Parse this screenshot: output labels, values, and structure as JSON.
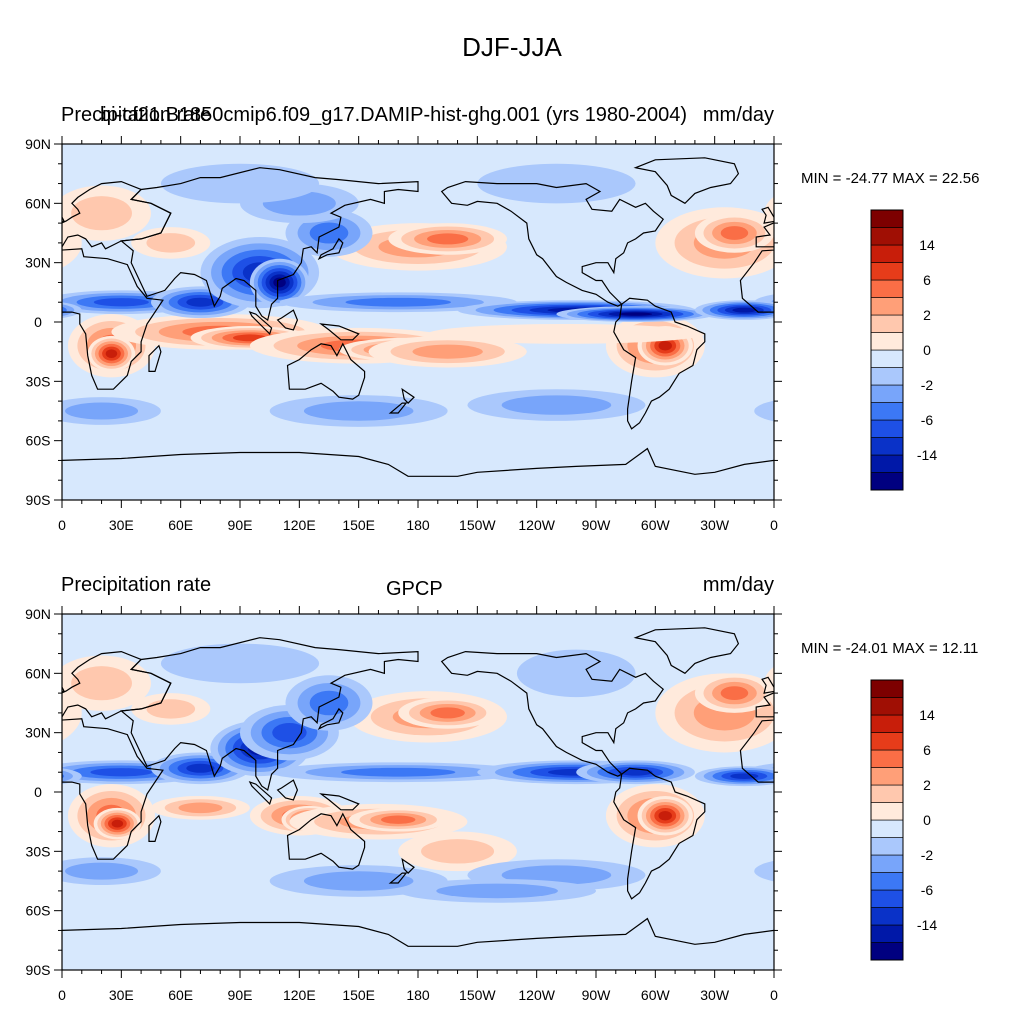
{
  "title": "DJF-JJA",
  "panels": [
    {
      "left_title": "Precipitation rate",
      "center_title": "bi-cf21.B1850cmip6.f09_g17.DAMIP-hist-ghg.001 (yrs 1980-2004)",
      "right_title": "mm/day",
      "min_max": "MIN = -24.77 MAX =  22.56"
    },
    {
      "left_title": "Precipitation rate",
      "center_title": "GPCP",
      "right_title": "mm/day",
      "min_max": "MIN = -24.01 MAX =  12.11"
    }
  ],
  "axes": {
    "x_ticks": [
      "0",
      "30E",
      "60E",
      "90E",
      "120E",
      "150E",
      "180",
      "150W",
      "120W",
      "90W",
      "60W",
      "30W",
      "0"
    ],
    "y_ticks": [
      "90N",
      "60N",
      "30N",
      "0",
      "30S",
      "60S",
      "90S"
    ]
  },
  "colorbar": {
    "colors": [
      "#000080",
      "#0018a8",
      "#0a32c8",
      "#1e50e6",
      "#3c78f5",
      "#78a5fa",
      "#aac8fc",
      "#d7e8fd",
      "#ffeadc",
      "#ffc8ae",
      "#ff9f78",
      "#fa6e46",
      "#e63c1a",
      "#c81e0a",
      "#a00f04",
      "#7d0000"
    ],
    "labels": [
      "-14",
      "-6",
      "-2",
      "0",
      "2",
      "6",
      "14"
    ]
  },
  "chart_data": [
    {
      "type": "heatmap",
      "title": "bi-cf21.B1850cmip6.f09_g17.DAMIP-hist-ghg.001 (yrs 1980-2004)",
      "units": "mm/day",
      "min": -24.77,
      "max": 22.56,
      "xlim": [
        0,
        360
      ],
      "ylim": [
        -90,
        90
      ]
    },
    {
      "type": "heatmap",
      "title": "GPCP",
      "units": "mm/day",
      "min": -24.01,
      "max": 12.11,
      "xlim": [
        0,
        360
      ],
      "ylim": [
        -90,
        90
      ]
    }
  ]
}
